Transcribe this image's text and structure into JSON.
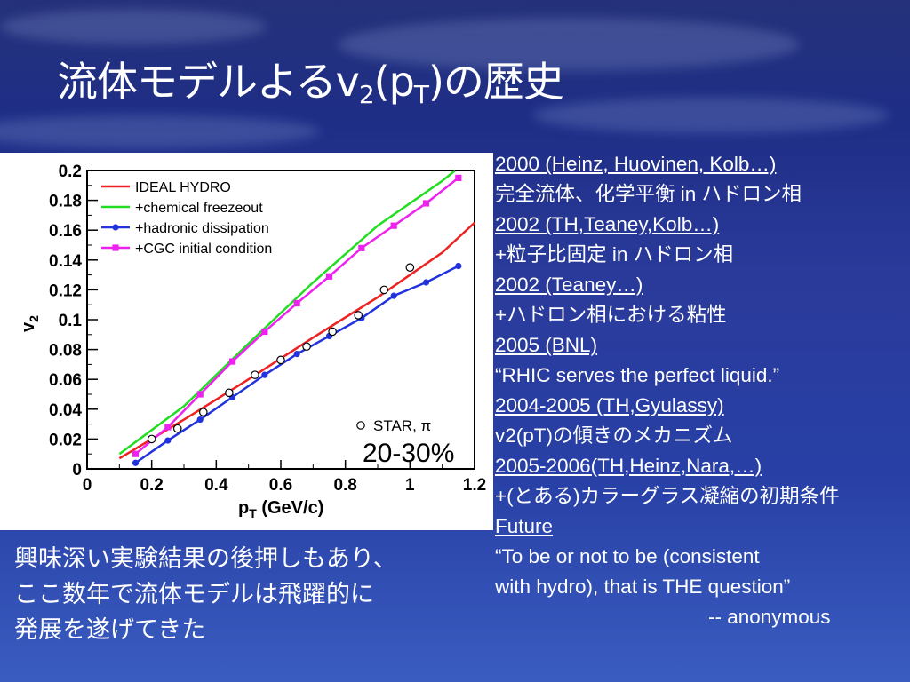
{
  "slide": {
    "title_main": "流体モデルよるv",
    "title_sub1": "2",
    "title_mid": "(p",
    "title_sub2": "T",
    "title_end": ")の歴史",
    "history": [
      {
        "text": "2000 (Heinz, Huovinen, Kolb…)",
        "heading": true
      },
      {
        "text": "完全流体、化学平衡 in ハドロン相",
        "heading": false
      },
      {
        "text": "2002 (TH,Teaney,Kolb…)",
        "heading": true
      },
      {
        "text": "+粒子比固定 in ハドロン相",
        "heading": false
      },
      {
        "text": "2002 (Teaney…)",
        "heading": true
      },
      {
        "text": "+ハドロン相における粘性",
        "heading": false
      },
      {
        "text": "2005 (BNL)",
        "heading": true
      },
      {
        "text": "“RHIC serves the perfect liquid.”",
        "heading": false
      },
      {
        "text": "2004-2005 (TH,Gyulassy)",
        "heading": true
      },
      {
        "text": "v2(pT)の傾きのメカニズム",
        "heading": false
      },
      {
        "text": "2005-2006(TH,Heinz,Nara,…)",
        "heading": true
      },
      {
        "text": "+(とある)カラーグラス凝縮の初期条件",
        "heading": false
      },
      {
        "text": "Future",
        "heading": true
      },
      {
        "text": "“To be or not to be (consistent",
        "heading": false
      },
      {
        "text": "with hydro), that is THE question”",
        "heading": false
      },
      {
        "text": "-- anonymous",
        "heading": false,
        "attrib": true
      }
    ],
    "summary": [
      "興味深い実験結果の後押しもあり、",
      "ここ数年で流体モデルは飛躍的に",
      "発展を遂げてきた"
    ]
  },
  "chart_data": {
    "type": "line",
    "xlabel_main": "p",
    "xlabel_sub": "T",
    "xlabel_unit": " (GeV/c)",
    "ylabel_main": "v",
    "ylabel_sub": "2",
    "xlim": [
      0,
      1.2
    ],
    "ylim": [
      0,
      0.2
    ],
    "xticks": [
      0,
      0.2,
      0.4,
      0.6,
      0.8,
      1,
      1.2
    ],
    "xtick_labels": [
      "0",
      "0.2",
      "0.4",
      "0.6",
      "0.8",
      "1",
      "1.2"
    ],
    "yticks": [
      0,
      0.02,
      0.04,
      0.06,
      0.08,
      0.1,
      0.12,
      0.14,
      0.16,
      0.18,
      0.2
    ],
    "ytick_labels": [
      "0",
      "0.02",
      "0.04",
      "0.06",
      "0.08",
      "0.1",
      "0.12",
      "0.14",
      "0.16",
      "0.18",
      "0.2"
    ],
    "centrality_label": "20-30%",
    "legend_position": "top-left",
    "series": [
      {
        "name": "IDEAL HYDRO",
        "color": "#ee2222",
        "marker": "none",
        "x": [
          0.1,
          0.3,
          0.5,
          0.7,
          0.9,
          1.1,
          1.2
        ],
        "y": [
          0.007,
          0.033,
          0.06,
          0.088,
          0.115,
          0.145,
          0.165
        ]
      },
      {
        "name": "+chemical freezeout",
        "color": "#22dd22",
        "marker": "none",
        "x": [
          0.1,
          0.3,
          0.5,
          0.7,
          0.9,
          1.1,
          1.14
        ],
        "y": [
          0.01,
          0.042,
          0.084,
          0.125,
          0.163,
          0.193,
          0.2
        ]
      },
      {
        "name": "+hadronic dissipation",
        "color": "#2233dd",
        "marker": "circle",
        "x": [
          0.15,
          0.25,
          0.35,
          0.45,
          0.55,
          0.65,
          0.75,
          0.85,
          0.95,
          1.05,
          1.15
        ],
        "y": [
          0.004,
          0.019,
          0.033,
          0.048,
          0.063,
          0.077,
          0.089,
          0.101,
          0.116,
          0.125,
          0.136
        ]
      },
      {
        "name": "+CGC initial condition",
        "color": "#ee22ee",
        "marker": "square",
        "x": [
          0.15,
          0.25,
          0.35,
          0.45,
          0.55,
          0.65,
          0.75,
          0.85,
          0.95,
          1.05,
          1.15
        ],
        "y": [
          0.01,
          0.028,
          0.05,
          0.072,
          0.092,
          0.111,
          0.129,
          0.148,
          0.163,
          0.178,
          0.195
        ]
      }
    ],
    "points": {
      "name": "STAR, π",
      "marker": "open-circle",
      "x": [
        0.2,
        0.28,
        0.36,
        0.44,
        0.52,
        0.6,
        0.68,
        0.76,
        0.84,
        0.92,
        1.0
      ],
      "y": [
        0.02,
        0.027,
        0.038,
        0.051,
        0.063,
        0.073,
        0.082,
        0.092,
        0.103,
        0.12,
        0.135
      ]
    }
  }
}
